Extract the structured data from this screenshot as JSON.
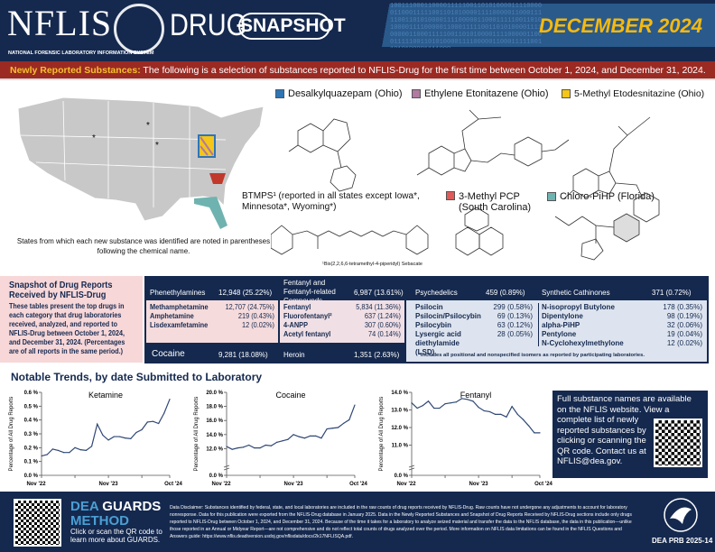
{
  "header": {
    "logo": "NFLIS",
    "logo_badge": "DEA",
    "logo_suffix": "DRUG",
    "subtitle": "NATIONAL FORENSIC LABORATORY INFORMATION SYSTEM",
    "snapshot": "SNAPSHOT",
    "date": "DECEMBER 2024",
    "binary": "1001110001100001111100110101000011110000011000111110011010100001111000001100011111001101010000111100000110001111100110101000011110000011000111110011010100001111000001100011111001101010000111100000110001111100110101000011110000011000111110011010100001111000"
  },
  "banner": {
    "label": "Newly Reported Substances:",
    "text": " The following is a selection of substances reported to NFLIS-Drug for the first time between October 1, 2024, and December 31, 2024."
  },
  "map": {
    "caption": "States from which each new substance was identified are noted in parentheses following the chemical name."
  },
  "substances": [
    {
      "name": "Desalkylquazepam (Ohio)",
      "color": "#2e75b6"
    },
    {
      "name": "Ethylene Etonitazene (Ohio)",
      "color": "#b07aa1"
    },
    {
      "name": "5-Methyl Etodesnitazine (Ohio)",
      "color": "#f5c518"
    },
    {
      "name": "BTMPS¹ (reported in all states except Iowa*, Minnesota*, Wyoming*)",
      "color": "#d9d9d9"
    },
    {
      "name": "3-Methyl PCP (South Carolina)",
      "color": "#e05a5a"
    },
    {
      "name": "Chloro-PiHP (Florida)",
      "color": "#6fb3b0"
    }
  ],
  "btmps_footnote": "¹Bis(2,2,6,6-tetramethyl-4-piperidyl) Sebacate",
  "snapshot": {
    "title": "Snapshot of Drug Reports Received by NFLIS-Drug",
    "description": "These tables present the top drugs in each category that drug laboratories received, analyzed, and reported to NFLIS-Drug between October 1, 2024, and December 31, 2024. (Percentages are of all reports in the same period.)",
    "categories": [
      {
        "name": "Phenethylamines",
        "total": "12,948 (25.22%)",
        "items": [
          [
            "Methamphetamine",
            "12,707 (24.75%)"
          ],
          [
            "Amphetamine",
            "219 (0.43%)"
          ],
          [
            "Lisdexamfetamine",
            "12 (0.02%)"
          ]
        ]
      },
      {
        "name": "Fentanyl and Fentanyl-related Compounds",
        "total": "6,987 (13.61%)",
        "items": [
          [
            "Fentanyl",
            "5,834 (11.36%)"
          ],
          [
            "Fluorofentanyl²",
            "637 (1.24%)"
          ],
          [
            "4-ANPP",
            "307 (0.60%)"
          ],
          [
            "Acetyl fentanyl",
            "74 (0.14%)"
          ]
        ]
      },
      {
        "name": "Psychedelics",
        "total": "459 (0.89%)",
        "items": [
          [
            "Psilocin",
            "299 (0.58%)"
          ],
          [
            "Psilocin/Psilocybin",
            "69 (0.13%)"
          ],
          [
            "Psilocybin",
            "63 (0.12%)"
          ],
          [
            "Lysergic acid diethylamide (LSD)",
            "28 (0.05%)"
          ]
        ]
      },
      {
        "name": "Synthetic Cathinones",
        "total": "371 (0.72%)",
        "items": [
          [
            "N-isopropyl Butylone",
            "178 (0.35%)"
          ],
          [
            "Dipentylone",
            "98 (0.19%)"
          ],
          [
            "alpha-PiHP",
            "32 (0.06%)"
          ],
          [
            "Pentylone",
            "19 (0.04%)"
          ],
          [
            "N-Cyclohexylmethylone",
            "12 (0.02%)"
          ]
        ]
      }
    ],
    "cocaine": {
      "name": "Cocaine",
      "total": "9,281 (18.08%)"
    },
    "heroin": {
      "name": "Heroin",
      "total": "1,351 (2.63%)"
    },
    "footnote": "²Includes all positional and nonspecified isomers as reported by participating laboratories."
  },
  "trends": {
    "title": "Notable Trends, by date Submitted to Laboratory"
  },
  "chart_data": [
    {
      "type": "line",
      "title": "Ketamine",
      "ylabel": "Percentage of All Drug Reports",
      "x_ticks": [
        "Nov '22",
        "Nov '23",
        "Oct '24"
      ],
      "ylim": [
        0,
        0.6
      ],
      "y_ticks": [
        "0.0 %",
        "0.1 %",
        "0.2 %",
        "0.3 %",
        "0.4 %",
        "0.5 %",
        "0.6 %"
      ],
      "y_tick_values": [
        0,
        0.1,
        0.2,
        0.3,
        0.4,
        0.5,
        0.6
      ],
      "axis_break": false,
      "values": [
        0.14,
        0.15,
        0.19,
        0.18,
        0.165,
        0.165,
        0.2,
        0.185,
        0.18,
        0.21,
        0.37,
        0.29,
        0.255,
        0.28,
        0.28,
        0.27,
        0.265,
        0.31,
        0.33,
        0.385,
        0.39,
        0.375,
        0.45,
        0.55
      ]
    },
    {
      "type": "line",
      "title": "Cocaine",
      "ylabel": "Percentage of All Drug Reports",
      "x_ticks": [
        "Nov '22",
        "Nov '23",
        "Oct '24"
      ],
      "ylim": [
        10,
        20
      ],
      "y_ticks": [
        "0.0 %",
        "12.0 %",
        "14.0 %",
        "16.0 %",
        "18.0 %",
        "20.0 %"
      ],
      "y_tick_values": [
        10,
        12,
        14,
        16,
        18,
        20
      ],
      "axis_break": true,
      "values": [
        12.3,
        11.9,
        12.1,
        12.2,
        12.5,
        12.1,
        12.1,
        12.5,
        12.4,
        12.9,
        13.1,
        13.3,
        14.0,
        13.7,
        13.5,
        13.8,
        13.8,
        13.5,
        14.8,
        14.9,
        15.0,
        15.6,
        16.1,
        18.2
      ]
    },
    {
      "type": "line",
      "title": "Fentanyl",
      "ylabel": "Percentage of All Drug Reports",
      "x_ticks": [
        "Nov '22",
        "Nov '23",
        "Oct '24"
      ],
      "ylim": [
        10,
        14
      ],
      "y_ticks": [
        "0.0 %",
        "11.0 %",
        "12.0 %",
        "13.0 %",
        "14.0 %"
      ],
      "y_tick_values": [
        10,
        11,
        12,
        13,
        14
      ],
      "axis_break": true,
      "values": [
        13.4,
        13.1,
        13.25,
        13.5,
        13.1,
        13.1,
        13.35,
        13.4,
        13.45,
        13.65,
        13.6,
        13.5,
        13.15,
        12.95,
        12.9,
        12.75,
        12.75,
        12.6,
        13.2,
        12.75,
        12.45,
        12.1,
        11.7,
        11.7
      ]
    }
  ],
  "colors": {
    "navy": "#15294f",
    "banner_red": "#9b2a23",
    "accent_yellow": "#f5b90f",
    "line": "#2f4775"
  },
  "info": {
    "text": "Full substance names are available on the NFLIS website. View a complete list of newly reported substances by clicking or scanning the QR code. Contact us at ",
    "email": "NFLIS@dea.gov",
    "end": "."
  },
  "footer": {
    "guards_1": "DEA",
    "guards_2": "GUARDS",
    "guards_3": "METHOD",
    "guards_text": "Click or scan the QR code to learn more about GUARDS.",
    "disclaimer": "Data Disclaimer: Substances identified by federal, state, and local laboratories are included in the raw counts of drug reports received by NFLIS-Drug. Raw counts have not undergone any adjustments to account for laboratory nonresponse. Data for this publication were exported from the NFLIS-Drug database in January 2025. Data in the Newly Reported Substances and Snapshot of Drug Reports Received by NFLIS-Drug sections include only drugs reported to NFLIS-Drug between October 1, 2024, and December 31, 2024. Because of the time it takes for a laboratory to analyze seized material and transfer the data to the NFLIS database, the data in this publication—unlike those reported in an Annual or Midyear Report—are not comprehensive and do not reflect total counts of drugs analyzed over the period. More information on NFLIS data limitations can be found in the NFLIS Questions and Answers guide: ",
    "link": "https://www.nflis.deadiversion.usdoj.gov/nflisdata/docs/2k17NFLISQA.pdf",
    "link_end": ".",
    "prb": "DEA PRB 2025-14"
  }
}
